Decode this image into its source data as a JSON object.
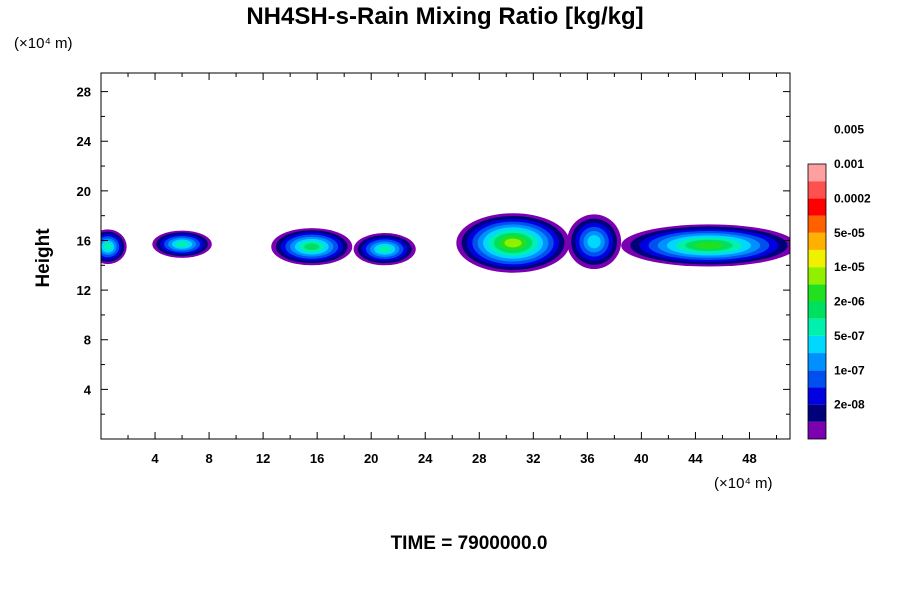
{
  "chart_data": {
    "type": "heatmap",
    "title": "NH4SH-s-Rain Mixing Ratio [kg/kg]",
    "ylabel": "Height",
    "x_unit": "(×10⁴ m)",
    "y_unit": "(×10⁴ m)",
    "xlim": [
      0,
      51
    ],
    "ylim": [
      0,
      29.5
    ],
    "x_ticks": [
      "4",
      "8",
      "12",
      "16",
      "20",
      "24",
      "28",
      "32",
      "36",
      "40",
      "44",
      "48"
    ],
    "y_ticks": [
      "4",
      "8",
      "12",
      "16",
      "20",
      "24",
      "28"
    ],
    "time_label": "TIME = 7900000.0",
    "colorbar": {
      "colors": [
        "#7a00b0",
        "#00007a",
        "#0000e0",
        "#0050f0",
        "#0090ff",
        "#00d8ff",
        "#00f0b0",
        "#00e060",
        "#20e020",
        "#90f000",
        "#f0f000",
        "#ffb000",
        "#ff6000",
        "#ff0000",
        "#ff5050",
        "#ffa0a0"
      ],
      "labels": [
        "2e-08",
        "1e-07",
        "5e-07",
        "2e-06",
        "1e-05",
        "5e-05",
        "0.0002",
        "0.001",
        "0.005"
      ]
    },
    "cells": [
      {
        "x": 0.5,
        "y": 15.5,
        "rx": 1.4,
        "ry": 1.4,
        "peak": 6
      },
      {
        "x": 6.0,
        "y": 15.7,
        "rx": 2.2,
        "ry": 1.1,
        "peak": 6
      },
      {
        "x": 15.6,
        "y": 15.5,
        "rx": 3.0,
        "ry": 1.5,
        "peak": 7
      },
      {
        "x": 21.0,
        "y": 15.3,
        "rx": 2.3,
        "ry": 1.3,
        "peak": 6
      },
      {
        "x": 30.5,
        "y": 15.8,
        "rx": 4.2,
        "ry": 2.4,
        "peak": 9
      },
      {
        "x": 36.5,
        "y": 15.9,
        "rx": 2.0,
        "ry": 2.2,
        "peak": 5
      },
      {
        "x": 45.0,
        "y": 15.6,
        "rx": 6.5,
        "ry": 1.7,
        "peak": 8
      }
    ]
  }
}
